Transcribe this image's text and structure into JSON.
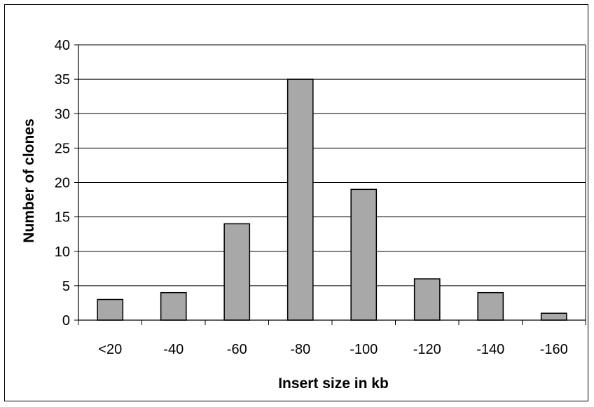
{
  "chart_data": {
    "type": "bar",
    "title": "",
    "xlabel": "Insert size in kb",
    "ylabel": "Number of clones",
    "categories": [
      "<20",
      "-40",
      "-60",
      "-80",
      "-100",
      "-120",
      "-140",
      "-160"
    ],
    "values": [
      3,
      4,
      14,
      35,
      19,
      6,
      4,
      1
    ],
    "ylim": [
      0,
      40
    ],
    "yticks": [
      0,
      5,
      10,
      15,
      20,
      25,
      30,
      35,
      40
    ],
    "grid": true,
    "legend": "none",
    "colors": {
      "bar_fill": "#a8a8a8",
      "bar_stroke": "#000000",
      "gridline": "#000000",
      "axis": "#000000"
    }
  }
}
